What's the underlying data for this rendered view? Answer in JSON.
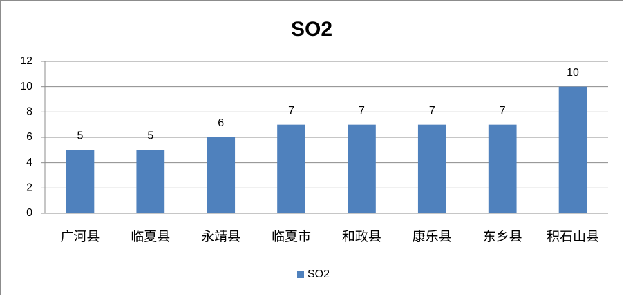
{
  "chart_data": {
    "type": "bar",
    "title": "SO2",
    "categories": [
      "广河县",
      "临夏县",
      "永靖县",
      "临夏市",
      "和政县",
      "康乐县",
      "东乡县",
      "积石山县"
    ],
    "series": [
      {
        "name": "SO2",
        "color": "#4f81bd",
        "values": [
          5,
          5,
          6,
          7,
          7,
          7,
          7,
          10
        ]
      }
    ],
    "ylim": [
      0,
      12
    ],
    "yticks": [
      0,
      2,
      4,
      6,
      8,
      10,
      12
    ],
    "grid": true,
    "data_labels": true,
    "legend": "bottom"
  }
}
